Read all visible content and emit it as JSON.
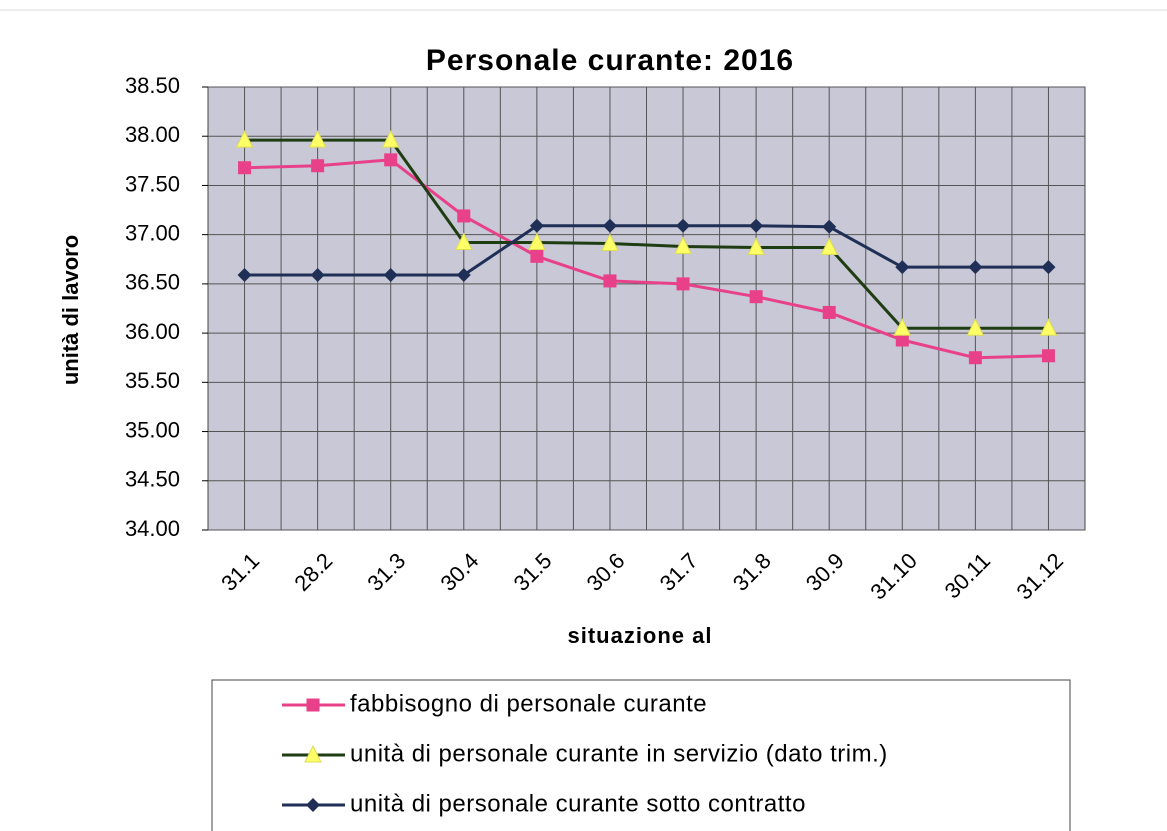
{
  "chart_data": {
    "type": "line",
    "title": "Personale curante: 2016",
    "x_label": "situazione al",
    "y_label": "unità di lavoro",
    "categories": [
      "31.1",
      "28.2",
      "31.3",
      "30.4",
      "31.5",
      "30.6",
      "31.7",
      "31.8",
      "30.9",
      "31.10",
      "30.11",
      "31.12"
    ],
    "series": [
      {
        "name": "fabbisogno di personale curante",
        "color": "#e8418a",
        "marker": "square",
        "marker_color": "#e8418a",
        "values": [
          37.68,
          37.7,
          37.76,
          37.19,
          36.78,
          36.53,
          36.5,
          36.37,
          36.21,
          35.93,
          35.75,
          35.77
        ]
      },
      {
        "name": "unità di personale curante in servizio (dato trim.)",
        "color": "#1f3d12",
        "marker": "triangle",
        "marker_color": "#ffff66",
        "values": [
          37.96,
          37.96,
          37.96,
          36.92,
          36.92,
          36.91,
          36.88,
          36.87,
          36.87,
          36.05,
          36.05,
          36.05
        ]
      },
      {
        "name": "unità di personale curante sotto contratto",
        "color": "#1f2f55",
        "marker": "diamond",
        "marker_color": "#1f2f55",
        "values": [
          36.59,
          36.59,
          36.59,
          36.59,
          37.09,
          37.09,
          37.09,
          37.09,
          37.08,
          36.67,
          36.67,
          36.67
        ]
      }
    ],
    "ylim": [
      34,
      38.5
    ],
    "yticks": [
      {
        "value": 34,
        "label": "34.00"
      },
      {
        "value": 34.5,
        "label": "34.50"
      },
      {
        "value": 35,
        "label": "35.00"
      },
      {
        "value": 35.5,
        "label": "35.50"
      },
      {
        "value": 36,
        "label": "36.00"
      },
      {
        "value": 36.5,
        "label": "36.50"
      },
      {
        "value": 37,
        "label": "37.00"
      },
      {
        "value": 37.5,
        "label": "37.50"
      },
      {
        "value": 38,
        "label": "38.00"
      },
      {
        "value": 38.5,
        "label": "38.50"
      }
    ],
    "grid": true,
    "legend": "bottom"
  }
}
